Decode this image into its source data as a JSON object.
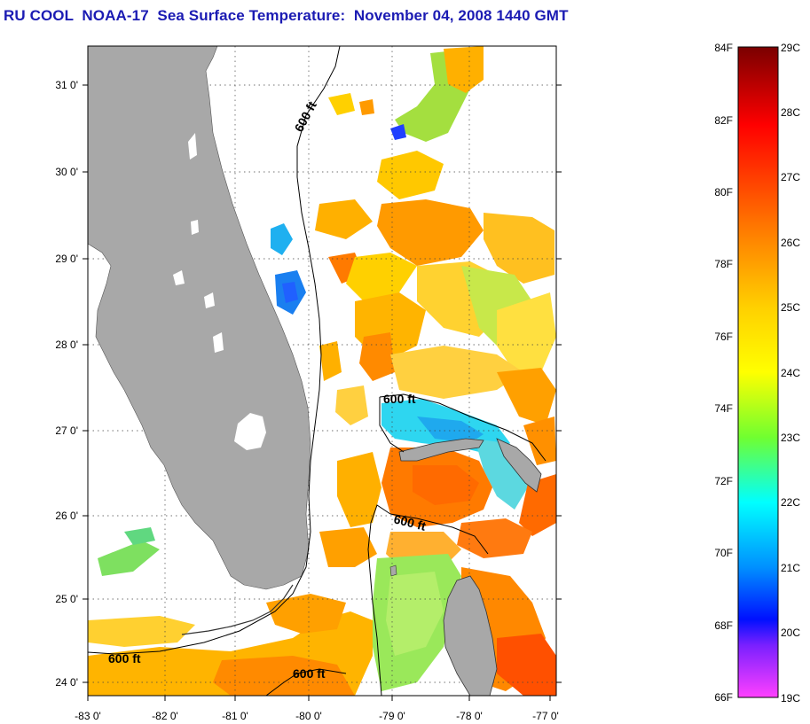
{
  "title": "RU COOL  NOAA-17  Sea Surface Temperature:  November 04, 2008 1440 GMT",
  "map": {
    "lon_ticks": [
      "-83 0'",
      "-82 0'",
      "-81 0'",
      "-80 0'",
      "-79 0'",
      "-78 0'",
      "-77 0'"
    ],
    "lat_ticks": [
      "31 0'",
      "30 0'",
      "29 0'",
      "28 0'",
      "27 0'",
      "26 0'",
      "25 0'",
      "24 0'"
    ],
    "contour_label": "600 ft",
    "land_color": "#a8a8a8",
    "gridlines": true
  },
  "colorbar": {
    "fahrenheit_labels": [
      "84F",
      "82F",
      "80F",
      "78F",
      "76F",
      "74F",
      "72F",
      "70F",
      "68F",
      "66F"
    ],
    "celsius_labels": [
      "29C",
      "28C",
      "27C",
      "26C",
      "25C",
      "24C",
      "23C",
      "22C",
      "21C",
      "20C",
      "19C"
    ],
    "colors": [
      "#800000",
      "#ff0000",
      "#ff8000",
      "#ffff00",
      "#80ff00",
      "#00ffff",
      "#0080ff",
      "#0000ff",
      "#8000ff",
      "#ff40ff"
    ]
  }
}
